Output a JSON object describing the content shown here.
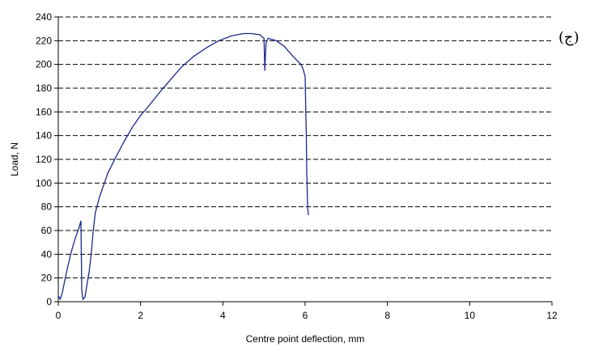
{
  "panel_label": "(ج)",
  "chart_data": {
    "type": "line",
    "title": "",
    "xlabel": "Centre point deflection, mm",
    "ylabel": "Load, N",
    "xlim": [
      0,
      12
    ],
    "ylim": [
      0,
      240
    ],
    "xticks": [
      0,
      2,
      4,
      6,
      8,
      10,
      12
    ],
    "yticks": [
      0,
      20,
      40,
      60,
      80,
      100,
      120,
      140,
      160,
      180,
      200,
      220,
      240
    ],
    "grid": "horizontal-dashed",
    "legend": "none",
    "series": [
      {
        "color": "#1a2a8c",
        "x": [
          0,
          0.05,
          0.1,
          0.2,
          0.3,
          0.4,
          0.5,
          0.55,
          0.57,
          0.6,
          0.65,
          0.7,
          0.75,
          0.8,
          0.85,
          0.9,
          1.0,
          1.2,
          1.4,
          1.6,
          1.8,
          2.0,
          2.2,
          2.5,
          2.8,
          3.0,
          3.3,
          3.6,
          3.9,
          4.2,
          4.5,
          4.7,
          4.9,
          5.0,
          5.02,
          5.05,
          5.1,
          5.3,
          5.5,
          5.7,
          5.9,
          5.95,
          6.0,
          6.02,
          6.03,
          6.04,
          6.06,
          6.08
        ],
        "y": [
          5,
          2,
          8,
          25,
          40,
          52,
          62,
          68,
          10,
          2,
          4,
          15,
          25,
          40,
          60,
          75,
          88,
          108,
          122,
          135,
          147,
          157,
          165,
          178,
          190,
          198,
          207,
          214,
          220,
          224,
          226,
          226,
          225,
          222,
          195,
          218,
          222,
          220,
          215,
          207,
          200,
          196,
          190,
          155,
          140,
          110,
          80,
          73
        ]
      }
    ]
  }
}
